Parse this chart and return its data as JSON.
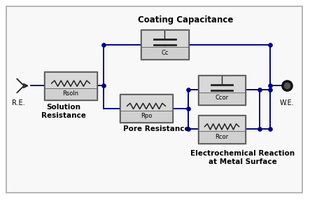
{
  "background_color": "#ffffff",
  "outer_bg": "#f0f0f0",
  "border_color": "#aaaaaa",
  "component_fill_outer": "#c8c8c8",
  "component_fill_inner": "#e0e0e0",
  "component_edge": "#555555",
  "wire_color": "#00008B",
  "text_color": "#000000",
  "wire_lw": 1.4,
  "labels": {
    "RE": "R.E.",
    "WE": "W.E.",
    "solution": "Solution\nResistance",
    "pore": "Pore Resistance",
    "coating": "Coating Capacitance",
    "electrochem": "Electrochemical Reaction\nat Metal Surface"
  },
  "font_sizes": {
    "component": 6.0,
    "label_small": 7.0,
    "label_bold": 7.5,
    "coating_title": 8.5
  }
}
